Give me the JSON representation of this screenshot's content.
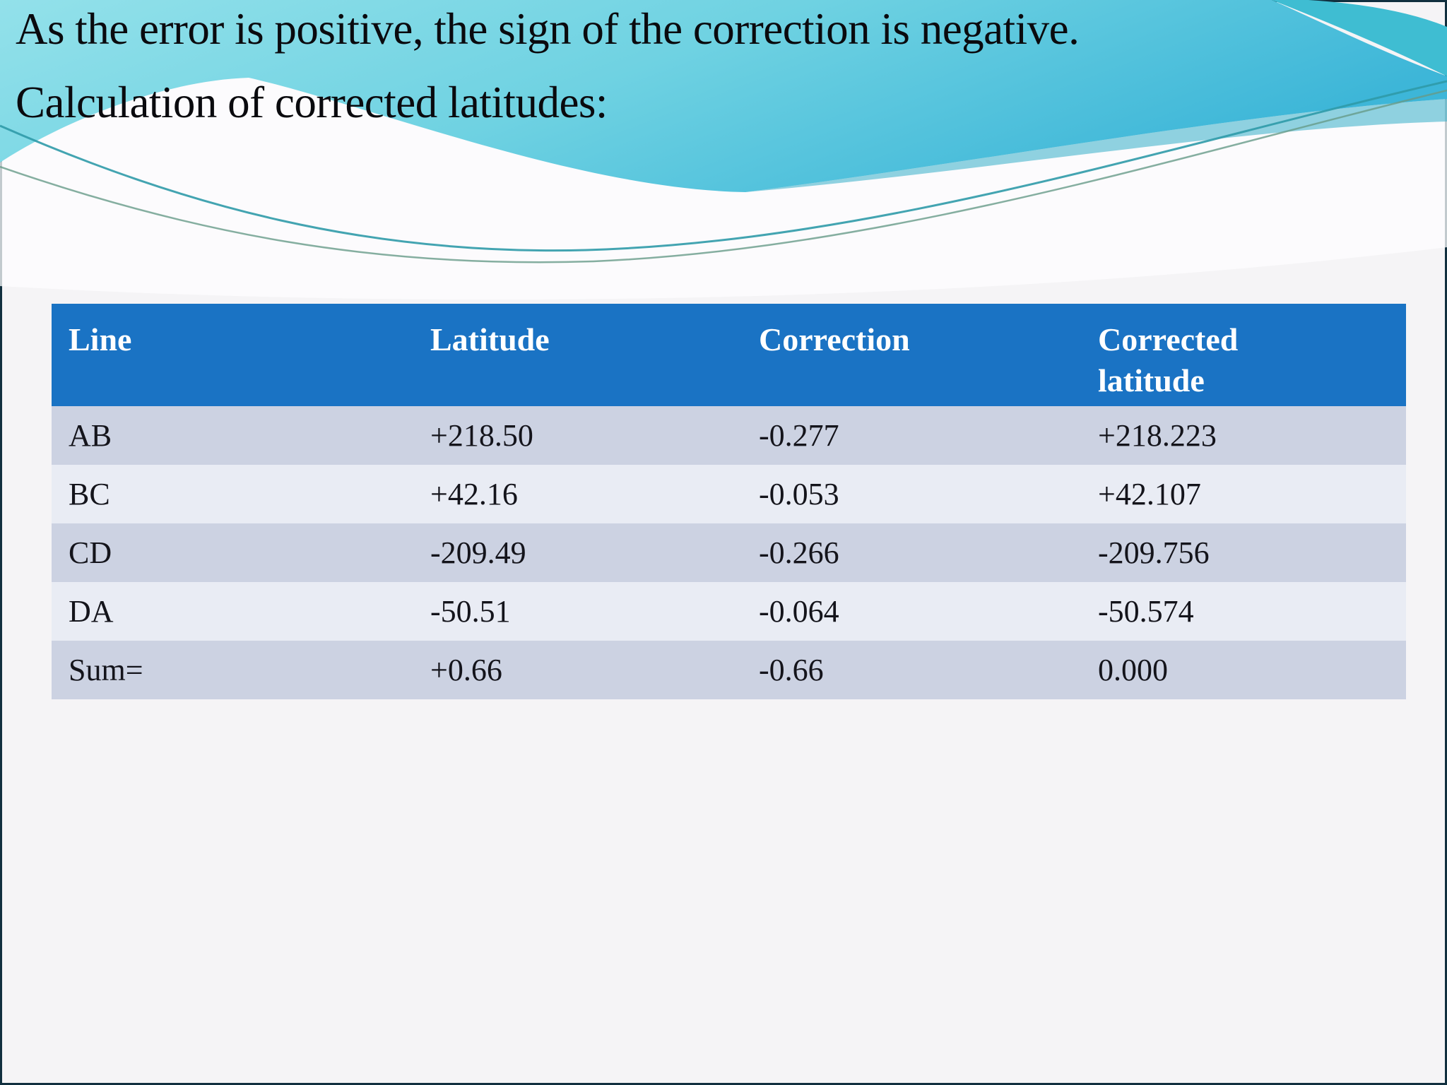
{
  "title": {
    "line1": "As the error is positive, the sign of the correction is negative.",
    "line2": "Calculation of corrected latitudes:"
  },
  "table": {
    "headers": [
      "Line",
      "Latitude",
      "Correction",
      "Corrected latitude"
    ],
    "rows": [
      [
        "AB",
        "+218.50",
        "-0.277",
        "+218.223"
      ],
      [
        "BC",
        "+42.16",
        "-0.053",
        "+42.107"
      ],
      [
        "CD",
        "-209.49",
        "-0.266",
        "-209.756"
      ],
      [
        "DA",
        "-50.51",
        "-0.064",
        "-50.574"
      ],
      [
        "Sum=",
        "+0.66",
        "-0.66",
        "0.000"
      ]
    ]
  },
  "colors": {
    "header_bg": "#1a73c4",
    "header_text": "#ffffff",
    "row_dark": "#ccd2e2",
    "row_light": "#e9ecf4",
    "background": "#f5f4f6",
    "wave_cyan_light": "#93e1ea",
    "wave_cyan_deep": "#3db6d8",
    "title_text": "#0a0a0e"
  }
}
